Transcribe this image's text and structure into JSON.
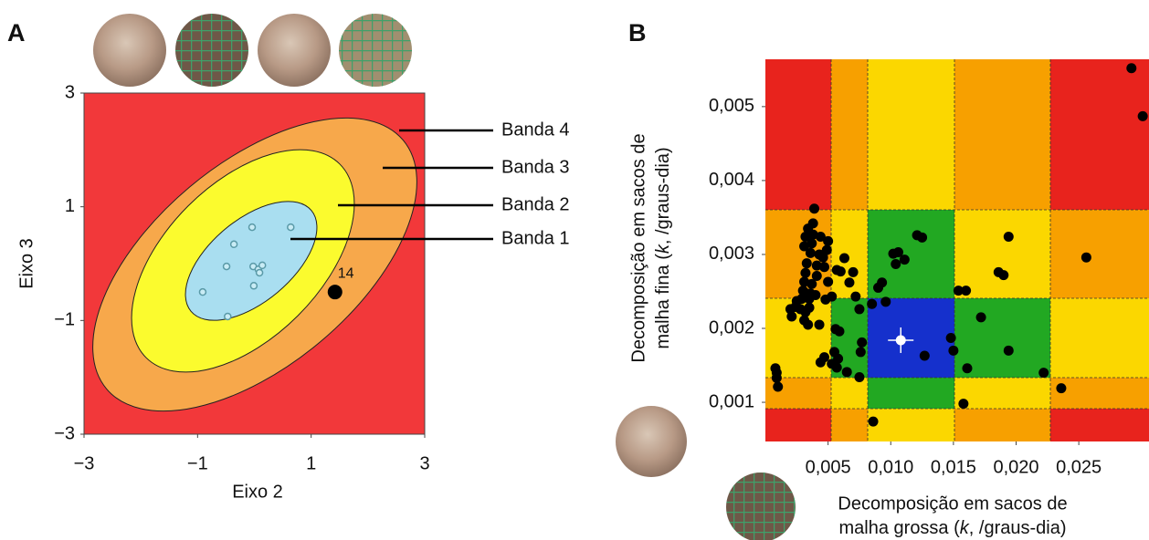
{
  "chart_data": [
    {
      "type": "scatter",
      "panel_label": "A",
      "x": [
        -0.04,
        0.64,
        -0.36,
        -0.49,
        -0.02,
        0.07,
        0.14,
        0.09,
        -0.01,
        -0.91,
        -0.47
      ],
      "values": [
        0.64,
        0.64,
        0.34,
        -0.05,
        -0.05,
        -0.1,
        -0.03,
        -0.16,
        -0.39,
        -0.5,
        -0.93
      ],
      "highlight": {
        "x": 1.42,
        "y": -0.5,
        "label": "14"
      },
      "bands": [
        "Banda 1",
        "Banda 2",
        "Banda 3",
        "Banda 4"
      ],
      "band_colors": [
        "#a9def0",
        "#fbfb2e",
        "#f7a84b",
        "#f2383a"
      ],
      "xlabel": "Eixo 2",
      "ylabel": "Eixo 3",
      "xlim": [
        -3,
        3
      ],
      "ylim": [
        -3,
        3
      ],
      "xticks": [
        {
          "value": -3,
          "label": "−3"
        },
        {
          "value": -1,
          "label": "−1"
        },
        1,
        3
      ],
      "yticks": [
        {
          "value": -3,
          "label": "−3"
        },
        {
          "value": -1,
          "label": "−1"
        },
        1,
        3
      ]
    },
    {
      "type": "scatter",
      "panel_label": "B",
      "x": [
        0.0292,
        0.0301,
        0.0256,
        0.0236,
        0.0222,
        0.0194,
        0.019,
        0.0186,
        0.0194,
        0.0172,
        0.016,
        0.0154,
        0.0158,
        0.0161,
        0.0148,
        0.015,
        0.0125,
        0.0121,
        0.0111,
        0.0106,
        0.0102,
        0.0104,
        0.0093,
        0.009,
        0.0085,
        0.0096,
        0.0127,
        0.0086,
        0.0075,
        0.0076,
        0.0077,
        0.0075,
        0.0072,
        0.007,
        0.0067,
        0.0065,
        0.0063,
        0.006,
        0.0057,
        0.0058,
        0.0057,
        0.0055,
        0.0053,
        0.0056,
        0.0059,
        0.0053,
        0.0047,
        0.0048,
        0.005,
        0.0047,
        0.005,
        0.0049,
        0.0046,
        0.0044,
        0.0043,
        0.0041,
        0.004,
        0.0043,
        0.0044,
        0.0038,
        0.0038,
        0.0037,
        0.0036,
        0.0039,
        0.0034,
        0.0032,
        0.0031,
        0.0033,
        0.0032,
        0.0031,
        0.003,
        0.0033,
        0.0035,
        0.0029,
        0.0028,
        0.0032,
        0.0035,
        0.0031,
        0.0034,
        0.0025,
        0.0024,
        0.002,
        0.0021,
        0.0037,
        0.0036,
        0.0041,
        0.0008,
        0.0009,
        0.001,
        0.0009
      ],
      "values": [
        0.00552,
        0.00487,
        0.00296,
        0.00119,
        0.0014,
        0.00324,
        0.00272,
        0.00276,
        0.0017,
        0.00215,
        0.00251,
        0.00251,
        0.00098,
        0.00146,
        0.00187,
        0.0017,
        0.00323,
        0.00326,
        0.00293,
        0.00303,
        0.00301,
        0.00287,
        0.00262,
        0.00255,
        0.00233,
        0.00236,
        0.00163,
        0.00074,
        0.00134,
        0.00168,
        0.00181,
        0.00226,
        0.00243,
        0.00276,
        0.00262,
        0.00141,
        0.00295,
        0.00277,
        0.00279,
        0.00159,
        0.00147,
        0.00168,
        0.00152,
        0.00199,
        0.00196,
        0.00243,
        0.00161,
        0.00239,
        0.00263,
        0.00283,
        0.00318,
        0.00306,
        0.00296,
        0.00324,
        0.003,
        0.00271,
        0.00245,
        0.00205,
        0.00154,
        0.00342,
        0.00327,
        0.00315,
        0.00302,
        0.00362,
        0.00335,
        0.00324,
        0.00311,
        0.00288,
        0.00275,
        0.00263,
        0.00251,
        0.00247,
        0.0024,
        0.0024,
        0.00226,
        0.00222,
        0.00228,
        0.00211,
        0.00205,
        0.00237,
        0.00229,
        0.00226,
        0.00216,
        0.0026,
        0.00247,
        0.00285,
        0.00146,
        0.00133,
        0.00121,
        0.0014
      ],
      "highlight": {
        "x": 0.0108,
        "y": 0.00184
      },
      "band_colors": [
        "#1530cc",
        "#22a822",
        "#fbd700",
        "#f7a000",
        "#e8231d"
      ],
      "xlabel": [
        "Decomposição em sacos de",
        [
          "malha grossa (",
          "k",
          ", /graus-dia)"
        ]
      ],
      "ylabel": [
        "Decomposição em sacos de",
        [
          "malha fina (",
          "k",
          ", /graus-dia)"
        ]
      ],
      "xlim": [
        0,
        0.0306
      ],
      "ylim": [
        0.00047,
        0.00564
      ],
      "xticks": [
        {
          "value": 0.005,
          "label": "0,005"
        },
        {
          "value": 0.01,
          "label": "0,010"
        },
        {
          "value": 0.015,
          "label": "0,015"
        },
        {
          "value": 0.02,
          "label": "0,020"
        },
        {
          "value": 0.025,
          "label": "0,025"
        }
      ],
      "yticks": [
        {
          "value": 0.001,
          "label": "0,001"
        },
        {
          "value": 0.002,
          "label": "0,002"
        },
        {
          "value": 0.003,
          "label": "0,003"
        },
        {
          "value": 0.004,
          "label": "0,004"
        },
        {
          "value": 0.005,
          "label": "0,005"
        }
      ]
    }
  ]
}
